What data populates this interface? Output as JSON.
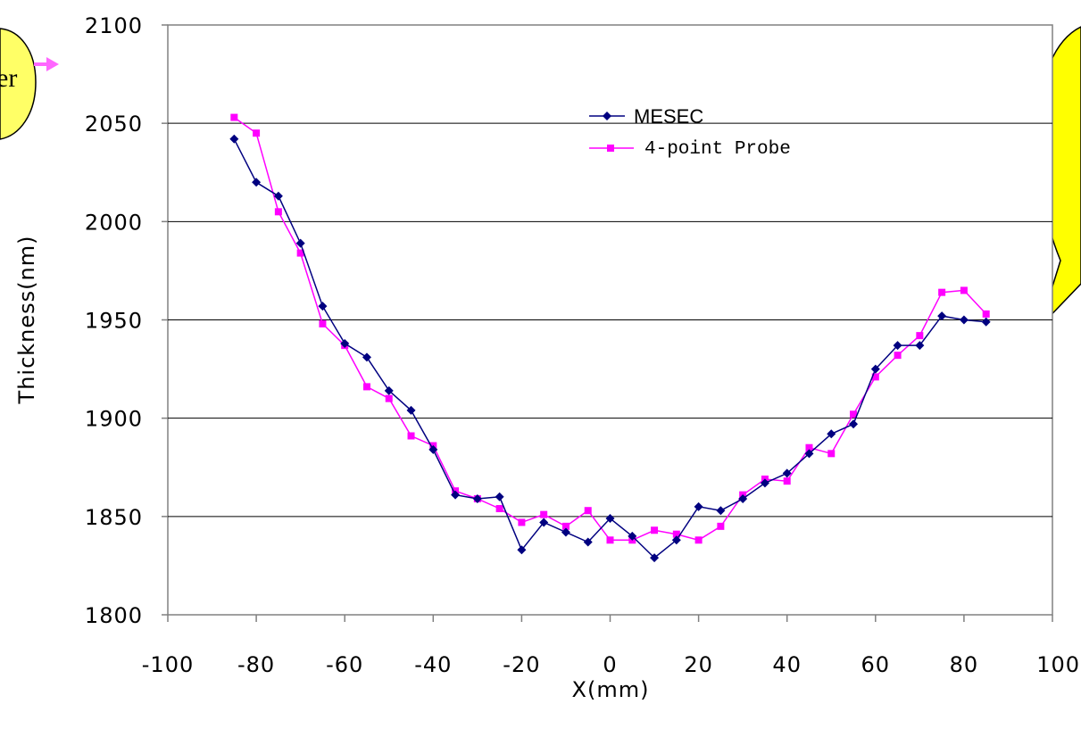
{
  "chart_data": {
    "type": "line",
    "xlabel": "X(mm)",
    "ylabel": "Thickness(nm)",
    "xlim": [
      -100,
      100
    ],
    "ylim": [
      1800,
      2100
    ],
    "xticks": [
      "-100",
      "-80",
      "-60",
      "-40",
      "-20",
      "0",
      "20",
      "40",
      "60",
      "80",
      "100"
    ],
    "yticks": [
      "1800",
      "1850",
      "1900",
      "1950",
      "2000",
      "2050",
      "2100"
    ],
    "grid": "horizontal",
    "legend_position": "top-center",
    "series": [
      {
        "name": "MESEC",
        "color": "#000080",
        "marker": "diamond",
        "x": [
          -85,
          -80,
          -75,
          -70,
          -65,
          -60,
          -55,
          -50,
          -45,
          -40,
          -35,
          -30,
          -25,
          -20,
          -15,
          -10,
          -5,
          0,
          5,
          10,
          15,
          20,
          25,
          30,
          35,
          40,
          45,
          50,
          55,
          60,
          65,
          70,
          75,
          80,
          85
        ],
        "y": [
          2042,
          2020,
          2013,
          1989,
          1957,
          1938,
          1931,
          1914,
          1904,
          1884,
          1861,
          1859,
          1860,
          1833,
          1847,
          1842,
          1837,
          1849,
          1840,
          1829,
          1838,
          1855,
          1853,
          1859,
          1867,
          1872,
          1882,
          1892,
          1897,
          1925,
          1937,
          1937,
          1952,
          1950,
          1949
        ]
      },
      {
        "name": "4-point Probe",
        "color": "#FF00FF",
        "marker": "square",
        "x": [
          -85,
          -80,
          -75,
          -70,
          -65,
          -60,
          -55,
          -50,
          -45,
          -40,
          -35,
          -30,
          -25,
          -20,
          -15,
          -10,
          -5,
          0,
          5,
          10,
          15,
          20,
          25,
          30,
          35,
          40,
          45,
          50,
          55,
          60,
          65,
          70,
          75,
          80,
          85
        ],
        "y": [
          2053,
          2045,
          2005,
          1984,
          1948,
          1937,
          1916,
          1910,
          1891,
          1886,
          1863,
          1859,
          1854,
          1847,
          1851,
          1845,
          1853,
          1838,
          1838,
          1843,
          1841,
          1838,
          1845,
          1861,
          1869,
          1868,
          1885,
          1882,
          1902,
          1921,
          1932,
          1942,
          1964,
          1965,
          1953
        ]
      }
    ]
  },
  "callout_left": {
    "text": "er",
    "fill": "#FFFF66",
    "arrow_color": "#FF66FF"
  },
  "callout_right": {
    "fill": "#FFFF00"
  }
}
